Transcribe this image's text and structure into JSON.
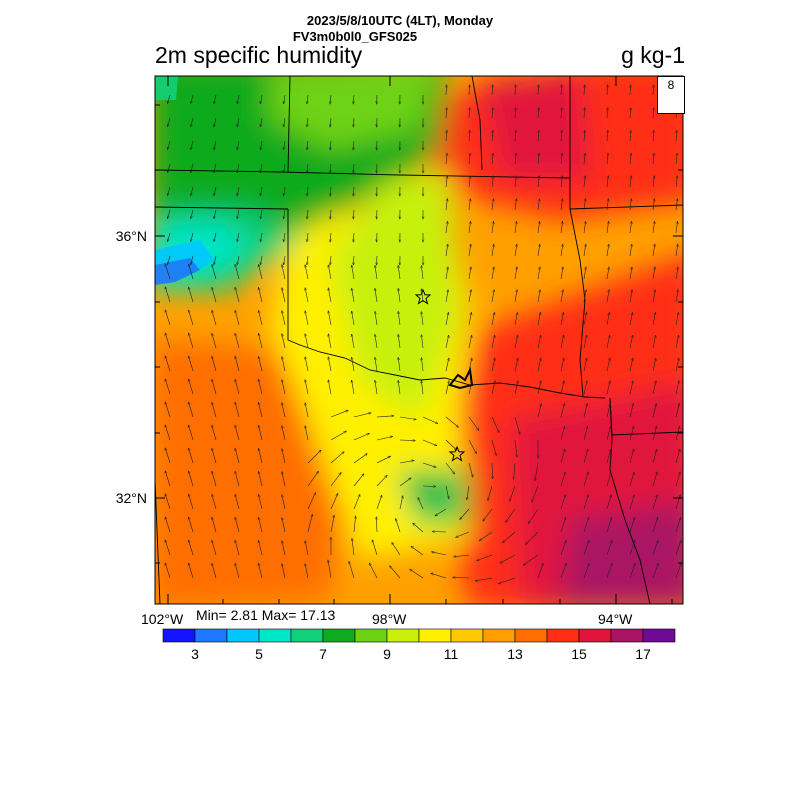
{
  "header": {
    "line1": "2023/5/8/10UTC (4LT), Monday",
    "line2": "FV3m0b0l0_GFS025"
  },
  "variable": {
    "title": "2m specific humidity",
    "units": "g kg-1"
  },
  "stats": {
    "text": "Min= 2.81 Max= 17.13",
    "min": 2.81,
    "max": 17.13
  },
  "axes": {
    "lon_labels": [
      "102°W",
      "98°W",
      "94°W"
    ],
    "lat_labels": [
      "36°N",
      "32°N"
    ]
  },
  "vector_legend": {
    "value": "8"
  },
  "colorbar": {
    "colors": [
      "#1414ff",
      "#1e78ff",
      "#00c8ff",
      "#00e6c8",
      "#10d07a",
      "#10aa1e",
      "#6ed214",
      "#c8f00a",
      "#fff000",
      "#ffc800",
      "#ffa000",
      "#ff6e00",
      "#ff2d14",
      "#e1143c",
      "#aa1464",
      "#6e0a96"
    ],
    "tick_labels": [
      "3",
      "5",
      "7",
      "9",
      "11",
      "13",
      "15",
      "17"
    ]
  },
  "icons": [
    "star-marker-icon",
    "star-marker-icon"
  ]
}
